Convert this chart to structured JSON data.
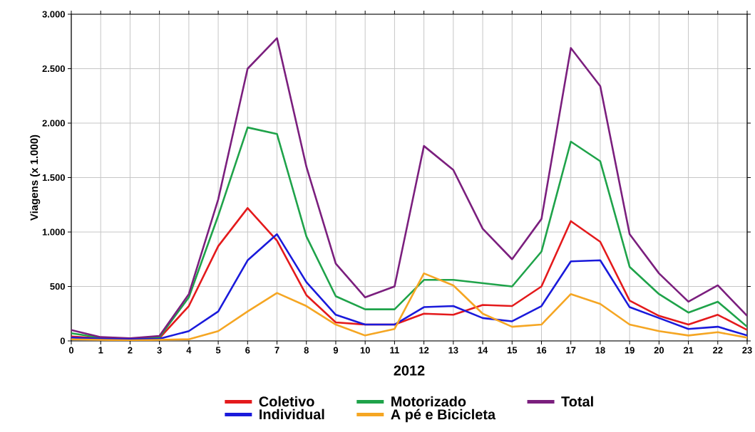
{
  "chart_data": {
    "type": "line",
    "xlabel": "2012",
    "ylabel": "Viagens (x 1.000)",
    "x": [
      0,
      1,
      2,
      3,
      4,
      5,
      6,
      7,
      8,
      9,
      10,
      11,
      12,
      13,
      14,
      15,
      16,
      17,
      18,
      19,
      20,
      21,
      22,
      23
    ],
    "xlim": [
      0,
      23
    ],
    "xticks": [
      0,
      1,
      2,
      3,
      4,
      5,
      6,
      7,
      8,
      9,
      10,
      11,
      12,
      13,
      14,
      15,
      16,
      17,
      18,
      19,
      20,
      21,
      22,
      23
    ],
    "ylim": [
      0,
      3000
    ],
    "yticks": [
      {
        "value": 0,
        "label": "0"
      },
      {
        "value": 500,
        "label": "500"
      },
      {
        "value": 1000,
        "label": "1.000"
      },
      {
        "value": 1500,
        "label": "1.500"
      },
      {
        "value": 2000,
        "label": "2.000"
      },
      {
        "value": 2500,
        "label": "2.500"
      },
      {
        "value": 3000,
        "label": "3.000"
      }
    ],
    "grid": true,
    "legend": "bottom",
    "marker": "none",
    "line_style": "solid",
    "series": [
      {
        "name": "Coletivo",
        "color": "#e41a1c",
        "values": [
          40,
          25,
          15,
          25,
          320,
          870,
          1220,
          920,
          420,
          170,
          150,
          150,
          250,
          240,
          330,
          320,
          500,
          1100,
          910,
          370,
          230,
          150,
          240,
          100
        ]
      },
      {
        "name": "Motorizado",
        "color": "#1fa34a",
        "values": [
          70,
          30,
          20,
          35,
          400,
          1150,
          1960,
          1900,
          960,
          410,
          290,
          290,
          560,
          560,
          530,
          500,
          820,
          1830,
          1650,
          680,
          430,
          260,
          360,
          130
        ]
      },
      {
        "name": "Total",
        "color": "#7b1f7e",
        "values": [
          100,
          35,
          25,
          45,
          430,
          1300,
          2500,
          2780,
          1600,
          710,
          400,
          500,
          1790,
          1570,
          1030,
          750,
          1120,
          2690,
          2340,
          980,
          620,
          360,
          510,
          230
        ]
      },
      {
        "name": "Individual",
        "color": "#1a1adb",
        "values": [
          30,
          20,
          15,
          20,
          90,
          270,
          740,
          980,
          540,
          240,
          150,
          150,
          310,
          320,
          210,
          180,
          320,
          730,
          740,
          310,
          210,
          110,
          130,
          50
        ]
      },
      {
        "name": "A pé e Bicicleta",
        "color": "#f5a623",
        "values": [
          15,
          10,
          5,
          10,
          15,
          90,
          270,
          440,
          320,
          150,
          50,
          110,
          620,
          510,
          250,
          130,
          150,
          430,
          340,
          150,
          90,
          50,
          80,
          30
        ]
      }
    ]
  }
}
